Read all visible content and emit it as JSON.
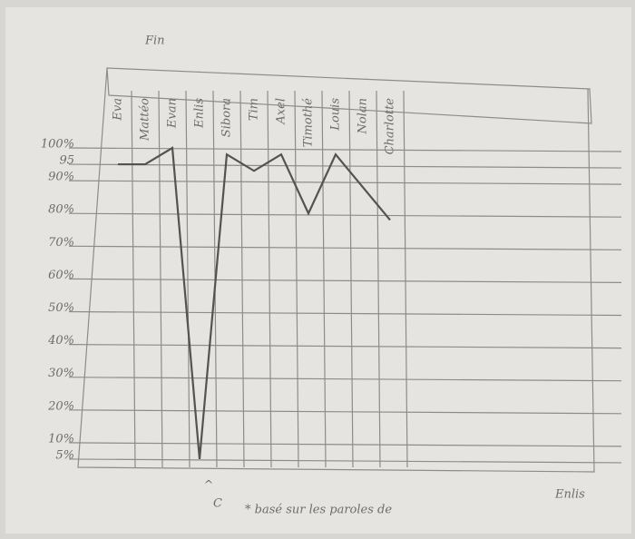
{
  "chart_data": {
    "type": "line",
    "title": "Fin",
    "categories": [
      "Eva",
      "Mattéo",
      "Evan",
      "Enlis",
      "Sibora",
      "Tim",
      "Axel",
      "Timothé",
      "Louis",
      "Nolan",
      "Charlotte"
    ],
    "series": [
      {
        "name": "Fin",
        "color": "#55524f",
        "values": [
          95,
          95,
          100,
          5,
          98,
          93,
          98,
          80,
          98,
          88,
          78
        ]
      }
    ],
    "ylim": [
      0,
      100
    ],
    "yticks": [
      {
        "value": 100,
        "label": "100%"
      },
      95,
      {
        "value": 90,
        "label": "90%"
      },
      {
        "value": 80,
        "label": "80%"
      },
      {
        "value": 70,
        "label": "70%"
      },
      {
        "value": 60,
        "label": "60%"
      },
      {
        "value": 50,
        "label": "50%"
      },
      {
        "value": 40,
        "label": "40%"
      },
      {
        "value": 30,
        "label": "30%"
      },
      {
        "value": 20,
        "label": "20%"
      },
      {
        "value": 10,
        "label": "10%"
      },
      {
        "value": 5,
        "label": "5%"
      }
    ],
    "grid": true,
    "annotations": [
      "^",
      "C"
    ],
    "footnote": "* basé sur les paroles de",
    "footnote_name": "Enlis"
  }
}
